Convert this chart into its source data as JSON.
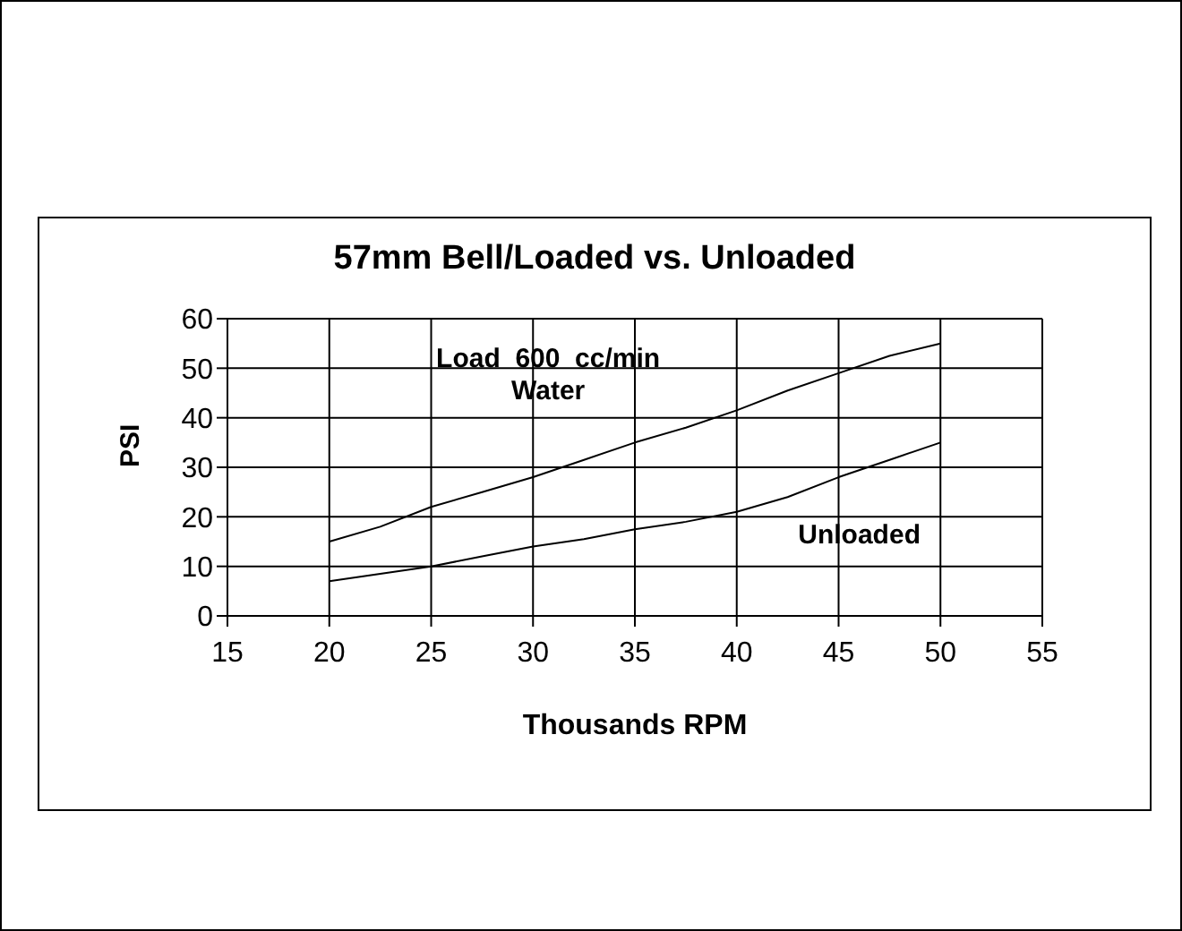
{
  "chart_data": {
    "type": "line",
    "title": "57mm Bell/Loaded vs. Unloaded",
    "xlabel": "Thousands RPM",
    "ylabel": "PSI",
    "x": [
      20,
      22.5,
      25,
      27.5,
      30,
      32.5,
      35,
      37.5,
      40,
      42.5,
      45,
      47.5,
      50
    ],
    "series": [
      {
        "name": "Load  600  cc/min\nWater",
        "color": "#000000",
        "values": [
          15,
          18,
          22,
          25,
          28,
          31.5,
          35,
          38,
          41.5,
          45.5,
          49,
          52.5,
          55
        ]
      },
      {
        "name": "Unloaded",
        "color": "#000000",
        "values": [
          7,
          8.5,
          10,
          12,
          14,
          15.5,
          17.5,
          19,
          21,
          24,
          28,
          31.5,
          35
        ]
      }
    ],
    "xlim": [
      15,
      55
    ],
    "xticks": [
      15,
      20,
      25,
      30,
      35,
      40,
      45,
      50,
      55
    ],
    "ylim": [
      0,
      60
    ],
    "yticks": [
      0,
      10,
      20,
      30,
      40,
      50,
      60
    ],
    "grid": true,
    "legend": false,
    "marker": "none",
    "line_style": "solid"
  }
}
